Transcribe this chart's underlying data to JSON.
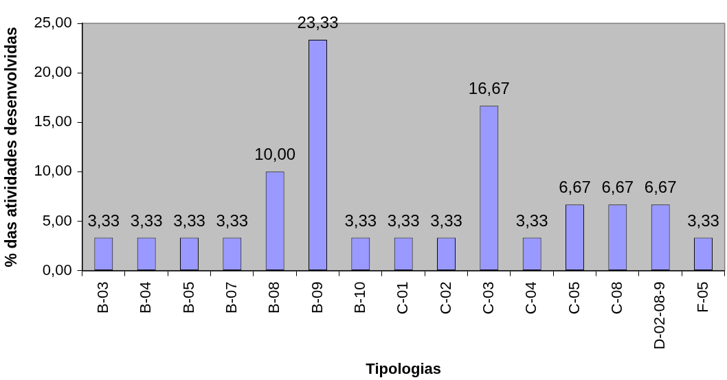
{
  "chart_data": {
    "type": "bar",
    "xlabel": "Tipologias",
    "ylabel": "% das atividades desenvolvidas",
    "categories": [
      "B-03",
      "B-04",
      "B-05",
      "B-07",
      "B-08",
      "B-09",
      "B-10",
      "C-01",
      "C-02",
      "C-03",
      "C-04",
      "C-05",
      "C-08",
      "D-02-08-9",
      "F-05"
    ],
    "values": [
      3.33,
      3.33,
      3.33,
      3.33,
      10,
      23.33,
      3.33,
      3.33,
      3.33,
      16.67,
      3.33,
      6.67,
      6.67,
      6.67,
      3.33
    ],
    "value_labels": [
      "3,33",
      "3,33",
      "3,33",
      "3,33",
      "10,00",
      "23,33",
      "3,33",
      "3,33",
      "3,33",
      "16,67",
      "3,33",
      "6,67",
      "6,67",
      "6,67",
      "3,33"
    ],
    "color": "#9999ff",
    "ylim": [
      0,
      25
    ],
    "yticks": [
      {
        "value": 0,
        "label": "0,00"
      },
      {
        "value": 5,
        "label": "5,00"
      },
      {
        "value": 10,
        "label": "10,00"
      },
      {
        "value": 15,
        "label": "15,00"
      },
      {
        "value": 20,
        "label": "20,00"
      },
      {
        "value": 25,
        "label": "25,00"
      }
    ],
    "grid": false,
    "legend": false
  }
}
